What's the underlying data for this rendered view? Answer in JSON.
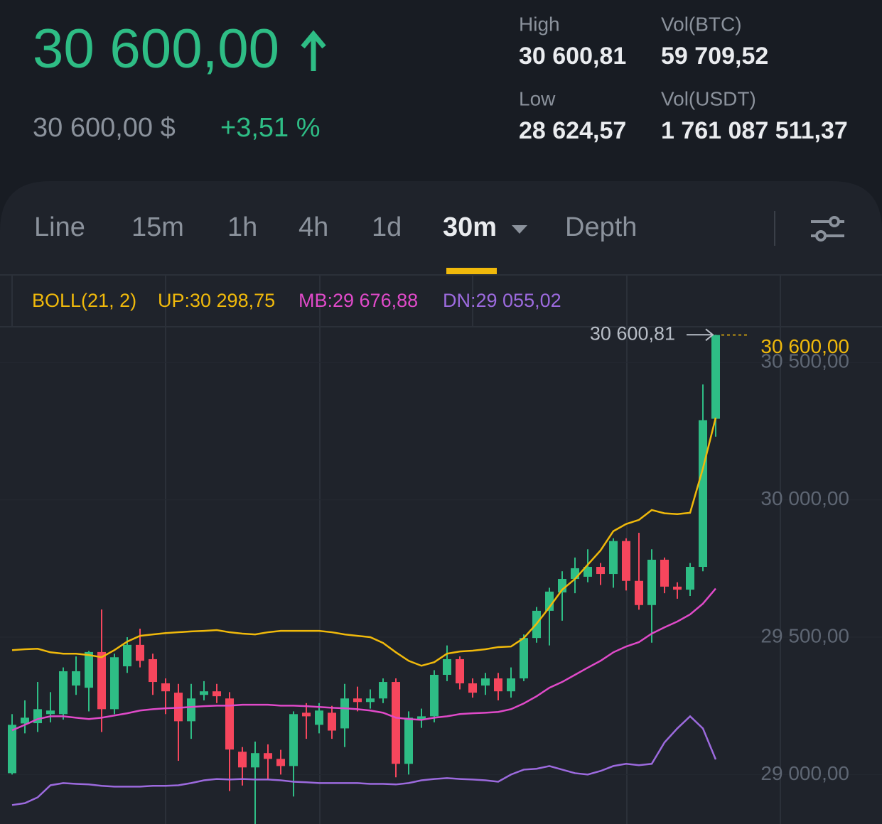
{
  "header": {
    "price": "30 600,00",
    "price_usd": "30 600,00 $",
    "change": "+3,51 %",
    "stats": [
      {
        "label": "High",
        "value": "30 600,81"
      },
      {
        "label": "Vol(BTC)",
        "value": "59 709,52"
      },
      {
        "label": "Low",
        "value": "28 624,57"
      },
      {
        "label": "Vol(USDT)",
        "value": "1 761 087 511,37"
      }
    ]
  },
  "tabs": [
    "Line",
    "15m",
    "1h",
    "4h",
    "1d",
    "30m",
    "Depth"
  ],
  "active_tab": 5,
  "chart_data": {
    "type": "candlestick",
    "indicator": "BOLL(21, 2)",
    "up_color": "#2ebd85",
    "down_color": "#f6465d",
    "open": [
      29005,
      29186,
      29187,
      29220,
      29220,
      29324,
      29316,
      29446,
      29238,
      29394,
      29472,
      29420,
      29332,
      29298,
      29194,
      29290,
      29303,
      29277,
      29083,
      29026,
      29078,
      29057,
      29031,
      29225,
      29181,
      29225,
      29168,
      29277,
      29264,
      29277,
      29337,
      29039,
      29202,
      29212,
      29363,
      29420,
      29332,
      29324,
      29350,
      29303,
      29350,
      29497,
      29596,
      29663,
      29712,
      29720,
      29756,
      29730,
      29850,
      29705,
      29617,
      29782,
      29684,
      29673,
      29756,
      30295
    ],
    "high": [
      29220,
      29270,
      29337,
      29300,
      29390,
      29430,
      29450,
      29601,
      29440,
      29500,
      29531,
      29440,
      29350,
      29330,
      29330,
      29340,
      29330,
      29300,
      29100,
      29120,
      29110,
      29090,
      29230,
      29260,
      29260,
      29250,
      29330,
      29320,
      29310,
      29350,
      29350,
      29230,
      29240,
      29380,
      29470,
      29430,
      29350,
      29370,
      29370,
      29390,
      29510,
      29610,
      29680,
      29740,
      29790,
      29820,
      29770,
      29860,
      29860,
      29880,
      29820,
      29790,
      29700,
      29770,
      30420,
      30600.81
    ],
    "low": [
      29000,
      29150,
      29155,
      29190,
      29200,
      29290,
      29230,
      29155,
      29220,
      29370,
      29390,
      29290,
      29220,
      29050,
      29130,
      29270,
      29260,
      28940,
      28960,
      28820,
      28980,
      29000,
      28920,
      29130,
      29150,
      29130,
      29100,
      29230,
      29240,
      29260,
      28990,
      29000,
      29170,
      29190,
      29340,
      29310,
      29280,
      29290,
      29270,
      29280,
      29340,
      29480,
      29470,
      29560,
      29660,
      29700,
      29690,
      29680,
      29670,
      29600,
      29480,
      29660,
      29640,
      29650,
      29740,
      30230
    ],
    "close": [
      29181,
      29207,
      29238,
      29233,
      29376,
      29376,
      29446,
      29238,
      29427,
      29472,
      29414,
      29337,
      29303,
      29194,
      29277,
      29303,
      29285,
      29091,
      29026,
      29078,
      29057,
      29031,
      29220,
      29212,
      29233,
      29160,
      29277,
      29264,
      29277,
      29337,
      29039,
      29207,
      29212,
      29363,
      29420,
      29332,
      29298,
      29350,
      29303,
      29350,
      29497,
      29596,
      29666,
      29712,
      29751,
      29756,
      29730,
      29850,
      29705,
      29617,
      29782,
      29684,
      29673,
      29756,
      30290,
      30600
    ],
    "bands": [
      {
        "name": "UP",
        "label": "UP:30 298,75",
        "color": "#f0b90b",
        "values": [
          29453,
          29456,
          29458,
          29445,
          29440,
          29440,
          29435,
          29427,
          29453,
          29484,
          29505,
          29510,
          29515,
          29518,
          29521,
          29523,
          29526,
          29518,
          29513,
          29510,
          29518,
          29523,
          29523,
          29523,
          29523,
          29518,
          29510,
          29505,
          29500,
          29479,
          29445,
          29414,
          29396,
          29409,
          29440,
          29448,
          29451,
          29456,
          29464,
          29466,
          29497,
          29549,
          29609,
          29673,
          29712,
          29764,
          29816,
          29886,
          29912,
          29927,
          29963,
          29951,
          29948,
          29953,
          30114,
          30298.75
        ]
      },
      {
        "name": "MB",
        "label": "MB:29 676,88",
        "color": "#e04ac9",
        "values": [
          29161,
          29181,
          29202,
          29212,
          29212,
          29207,
          29202,
          29207,
          29215,
          29223,
          29233,
          29238,
          29241,
          29243,
          29246,
          29249,
          29251,
          29251,
          29254,
          29254,
          29254,
          29251,
          29251,
          29249,
          29246,
          29243,
          29241,
          29238,
          29233,
          29225,
          29207,
          29202,
          29199,
          29207,
          29212,
          29220,
          29223,
          29225,
          29228,
          29238,
          29259,
          29285,
          29316,
          29337,
          29363,
          29389,
          29414,
          29445,
          29466,
          29482,
          29513,
          29536,
          29557,
          29583,
          29622,
          29676.88
        ]
      },
      {
        "name": "DN",
        "label": "DN:29 055,02",
        "color": "#9c6ade",
        "values": [
          28889,
          28896,
          28917,
          28961,
          28969,
          28966,
          28964,
          28959,
          28956,
          28956,
          28956,
          28959,
          28959,
          28961,
          28969,
          28979,
          28984,
          28982,
          28984,
          28982,
          28982,
          28979,
          28974,
          28972,
          28969,
          28969,
          28969,
          28969,
          28966,
          28966,
          28964,
          28969,
          28979,
          28984,
          28987,
          28984,
          28982,
          28979,
          28974,
          29000,
          29018,
          29021,
          29031,
          29018,
          29005,
          29000,
          29013,
          29031,
          29039,
          29034,
          29039,
          29117,
          29168,
          29212,
          29168,
          29055.02
        ]
      }
    ],
    "ylim": [
      28820,
      30630
    ],
    "yticks": [
      {
        "value": 29000,
        "label": "29 000,00"
      },
      {
        "value": 29500,
        "label": "29 500,00"
      },
      {
        "value": 30000,
        "label": "30 000,00"
      },
      {
        "value": 30500,
        "label": "30 500,00"
      }
    ],
    "grid": true,
    "last_price": {
      "value": 30600,
      "label": "30 600,00",
      "color": "#f0b90b"
    },
    "high_marker": {
      "value": 30600.81,
      "label": "30 600,81"
    }
  }
}
